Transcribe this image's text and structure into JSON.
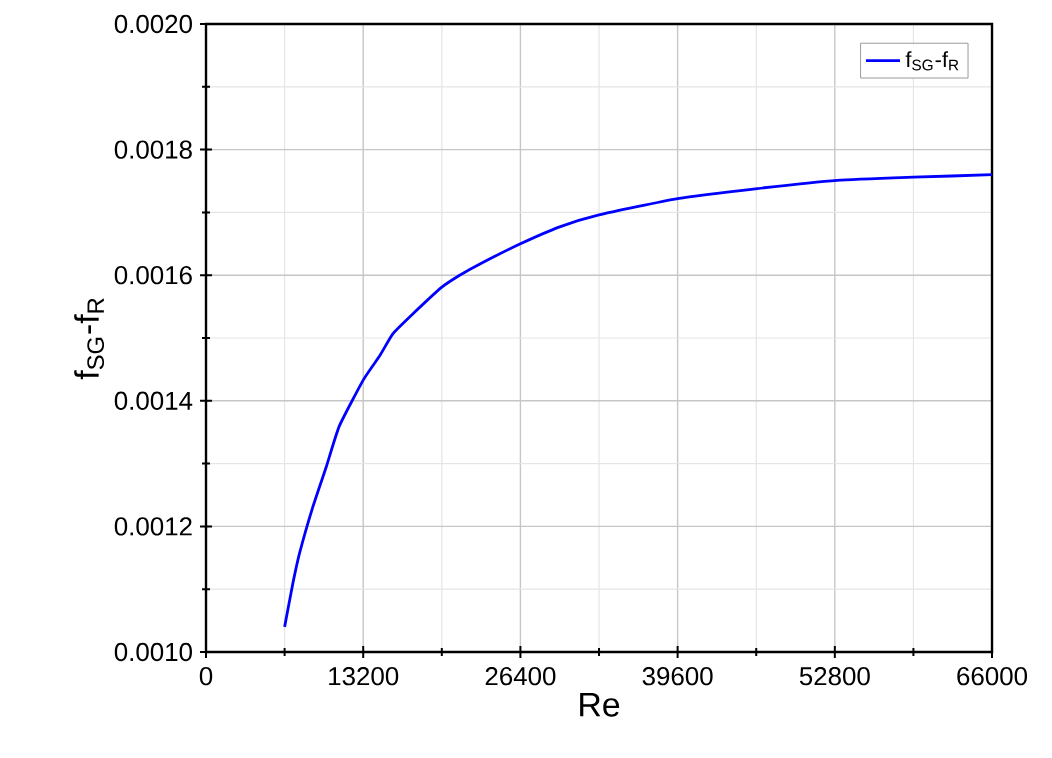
{
  "chart_data": {
    "type": "line",
    "xlabel": "Re",
    "ylabel": "f$_{SG}$-f$_{R}$",
    "x": [
      6600,
      7290,
      7850,
      8970,
      10100,
      11200,
      13200,
      14600,
      15700,
      17400,
      19800,
      21300,
      23000,
      26400,
      29700,
      33000,
      39600,
      46300,
      53000,
      59400,
      66000
    ],
    "series": [
      {
        "name": "f$_{SG}$-f$_{R}$",
        "color": "#0000ff",
        "values": [
          0.00104,
          0.001109,
          0.001157,
          0.001231,
          0.001295,
          0.00136,
          0.001433,
          0.001472,
          0.001507,
          0.001539,
          0.001581,
          0.0016,
          0.001618,
          0.00165,
          0.001677,
          0.001696,
          0.001722,
          0.001738,
          0.001751,
          0.001756,
          0.00176
        ]
      }
    ],
    "xlim": [
      0,
      66000
    ],
    "ylim": [
      0.001,
      0.002
    ],
    "xticks": [
      0,
      13200,
      26400,
      39600,
      52800,
      66000
    ],
    "yticks": [
      {
        "value": 0.001,
        "label": "0.0010"
      },
      {
        "value": 0.0012,
        "label": "0.0012"
      },
      {
        "value": 0.0014,
        "label": "0.0014"
      },
      {
        "value": 0.0016,
        "label": "0.0016"
      },
      {
        "value": 0.0018,
        "label": "0.0018"
      },
      {
        "value": 0.002,
        "label": "0.0020"
      }
    ],
    "grid": true,
    "legend": "top right"
  }
}
